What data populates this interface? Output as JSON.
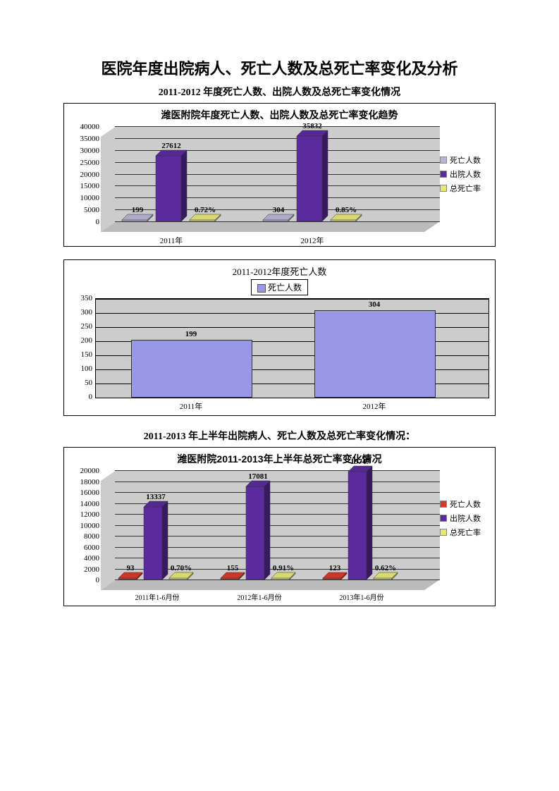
{
  "main_title": "医院年度出院病人、死亡人数及总死亡率变化及分析",
  "section1_title": "2011-2012 年度死亡人数、出院人数及总死亡率变化情况",
  "chart1": {
    "type": "bar-3d-grouped",
    "title": "潍医附院年度死亡人数、出院人数及总死亡率变化趋势",
    "categories": [
      "2011年",
      "2012年"
    ],
    "series": [
      {
        "name": "死亡人数",
        "color": "#b9b5d6",
        "values": [
          199,
          304
        ],
        "labels": [
          "199",
          "304"
        ]
      },
      {
        "name": "出院人数",
        "color": "#5b2b9e",
        "values": [
          27612,
          35832
        ],
        "labels": [
          "27612",
          "35832"
        ]
      },
      {
        "name": "总死亡率",
        "color": "#e6e67a",
        "values": [
          0.72,
          0.85
        ],
        "labels": [
          "0.72%",
          "0.85%"
        ]
      }
    ],
    "y_ticks": [
      "0",
      "5000",
      "10000",
      "15000",
      "20000",
      "25000",
      "30000",
      "35000",
      "40000"
    ],
    "ymax": 40000,
    "legend_colors": [
      "#b9b5d6",
      "#5b2b9e",
      "#e6e67a"
    ],
    "plot_bg": "#cccccc",
    "grid_color": "#333333"
  },
  "chart2": {
    "type": "bar",
    "title": "2011-2012年度死亡人数",
    "legend_label": "死亡人数",
    "legend_color": "#9898e6",
    "categories": [
      "2011年",
      "2012年"
    ],
    "values": [
      199,
      304
    ],
    "labels": [
      "199",
      "304"
    ],
    "y_ticks": [
      "0",
      "50",
      "100",
      "150",
      "200",
      "250",
      "300",
      "350"
    ],
    "ymax": 350,
    "plot_bg": "#cccccc",
    "bar_color": "#9898e6"
  },
  "section2_title": "2011-2013 年上半年出院病人、死亡人数及总死亡率变化情况：",
  "chart3": {
    "type": "bar-3d-grouped",
    "title": "潍医附院2011-2013年上半年总死亡率变化情况",
    "categories": [
      "2011年1-6月份",
      "2012年1-6月份",
      "2013年1-6月份"
    ],
    "series": [
      {
        "name": "死亡人数",
        "color": "#d63a2e",
        "values": [
          93,
          155,
          123
        ],
        "labels": [
          "93",
          "155",
          "123"
        ]
      },
      {
        "name": "出院人数",
        "color": "#5b2b9e",
        "values": [
          13337,
          17081,
          19747
        ],
        "labels": [
          "13337",
          "17081",
          "19747"
        ]
      },
      {
        "name": "总死亡率",
        "color": "#e6e67a",
        "values": [
          0.7,
          0.91,
          0.62
        ],
        "labels": [
          "0.70%",
          "0.91%",
          "0.62%"
        ]
      }
    ],
    "y_ticks": [
      "0",
      "2000",
      "4000",
      "6000",
      "8000",
      "10000",
      "12000",
      "14000",
      "16000",
      "18000",
      "20000"
    ],
    "ymax": 20000,
    "legend_colors": [
      "#d63a2e",
      "#5b2b9e",
      "#e6e67a"
    ],
    "plot_bg": "#cccccc"
  }
}
